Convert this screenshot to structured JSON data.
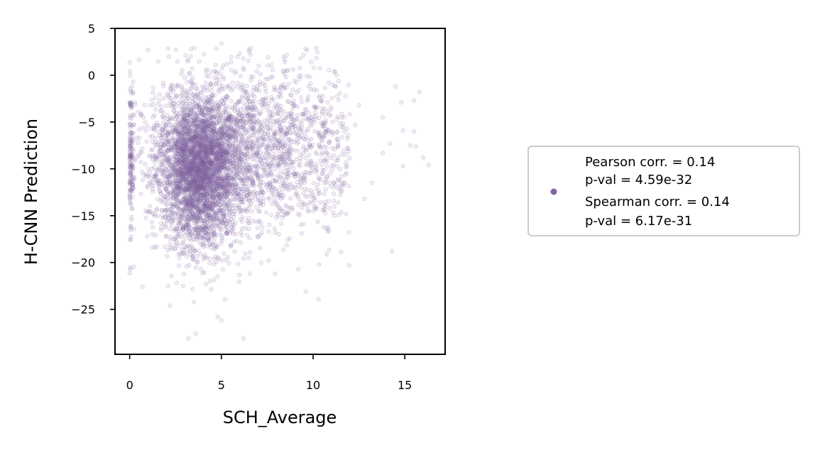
{
  "chart_data": {
    "type": "scatter",
    "xlabel": "SCH_Average",
    "ylabel": "H-CNN Prediction",
    "xlim": [
      -0.8,
      17.2
    ],
    "ylim": [
      -29.8,
      5
    ],
    "xticks": [
      0,
      5,
      10,
      15
    ],
    "yticks": [
      5,
      0,
      -5,
      -10,
      -15,
      -20,
      -25
    ],
    "grid": false,
    "point_color": "#8163a0",
    "point_alpha": 0.18,
    "legend": {
      "placement": "right",
      "lines": [
        "Pearson corr. = 0.14",
        "p-val = 4.59e-32",
        "Spearman corr. = 0.14",
        "p-val = 6.17e-31"
      ]
    },
    "point_clusters": [
      {
        "center_x": 3.8,
        "center_y": -10,
        "spread_x": 1.1,
        "spread_y": 4,
        "count": 3500
      },
      {
        "center_x": 7,
        "center_y": -8,
        "spread_x": 2.6,
        "spread_y": 4.5,
        "count": 1800
      },
      {
        "center_x": 0.05,
        "center_y": -9,
        "spread_x": 0.1,
        "spread_y": 4,
        "count": 150
      }
    ],
    "outliers": [
      {
        "x": 14.5,
        "y": -1.2
      },
      {
        "x": 15.8,
        "y": -1.8
      },
      {
        "x": 15.5,
        "y": -2.7
      },
      {
        "x": 14.8,
        "y": -2.9
      },
      {
        "x": 12.5,
        "y": -3.2
      },
      {
        "x": 13.8,
        "y": -4.5
      },
      {
        "x": 14.9,
        "y": -5.9
      },
      {
        "x": 15.5,
        "y": -6
      },
      {
        "x": 14.2,
        "y": -7.3
      },
      {
        "x": 15.3,
        "y": -7.5
      },
      {
        "x": 15.6,
        "y": -7.6
      },
      {
        "x": 16,
        "y": -8.8
      },
      {
        "x": 14.9,
        "y": -9.7
      },
      {
        "x": 16.3,
        "y": -9.6
      },
      {
        "x": 13.8,
        "y": -8.3
      },
      {
        "x": 13.2,
        "y": -11.5
      },
      {
        "x": 12.8,
        "y": -13.2
      },
      {
        "x": 14.3,
        "y": -18.8
      },
      {
        "x": 6.2,
        "y": -28.1
      },
      {
        "x": 3.2,
        "y": -28.1
      },
      {
        "x": 3.6,
        "y": -27.6
      },
      {
        "x": 5,
        "y": -26.2
      },
      {
        "x": 4.8,
        "y": -25.8
      },
      {
        "x": 2.2,
        "y": -24.6
      },
      {
        "x": 3.5,
        "y": -24.2
      },
      {
        "x": 10.3,
        "y": -23.9
      },
      {
        "x": 0.7,
        "y": -22.6
      },
      {
        "x": 9.6,
        "y": -23.1
      },
      {
        "x": 9.2,
        "y": -20.7
      },
      {
        "x": 0.05,
        "y": -20.7
      },
      {
        "x": 1,
        "y": 2.7
      },
      {
        "x": 5,
        "y": 3.4
      },
      {
        "x": 6.5,
        "y": 2.7
      },
      {
        "x": 11.3,
        "y": -6.1
      },
      {
        "x": 12.3,
        "y": -5.3
      },
      {
        "x": 11.8,
        "y": -14.8
      }
    ]
  }
}
